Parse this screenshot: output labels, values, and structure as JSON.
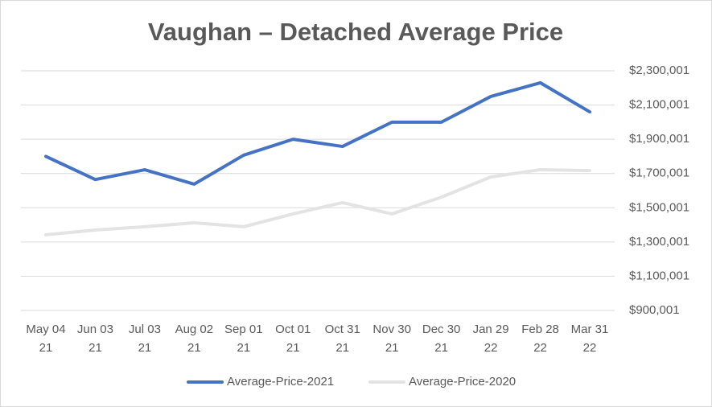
{
  "chart_data": {
    "type": "line",
    "title": "Vaughan – Detached Average Price",
    "categories": [
      "May 04 21",
      "Jun 03 21",
      "Jul 03 21",
      "Aug 02 21",
      "Sep 01 21",
      "Oct 01 21",
      "Oct 31 21",
      "Nov 30 21",
      "Dec 30 21",
      "Jan 29 22",
      "Feb 28 22",
      "Mar 31 22"
    ],
    "series": [
      {
        "name": "Average-Price-2021",
        "color": "#4472c4",
        "values": [
          1800000,
          1665000,
          1722000,
          1638000,
          1807000,
          1900000,
          1858000,
          2000000,
          2000000,
          2150000,
          2230000,
          2060000
        ]
      },
      {
        "name": "Average-Price-2020",
        "color": "#e3e3e3",
        "values": [
          1342000,
          1370000,
          1389000,
          1412000,
          1389000,
          1464000,
          1530000,
          1464000,
          1562000,
          1680000,
          1722000,
          1717000
        ]
      }
    ],
    "ylim": [
      900001,
      2300001
    ],
    "yticks": [
      {
        "value": 900001,
        "label": "$900,001"
      },
      {
        "value": 1100001,
        "label": "$1,100,001"
      },
      {
        "value": 1300001,
        "label": "$1,300,001"
      },
      {
        "value": 1500001,
        "label": "$1,500,001"
      },
      {
        "value": 1700001,
        "label": "$1,700,001"
      },
      {
        "value": 1900001,
        "label": "$1,900,001"
      },
      {
        "value": 2100001,
        "label": "$2,100,001"
      },
      {
        "value": 2300001,
        "label": "$2,300,001"
      }
    ],
    "y_axis_side": "right",
    "grid": true,
    "legend": "bottom"
  }
}
